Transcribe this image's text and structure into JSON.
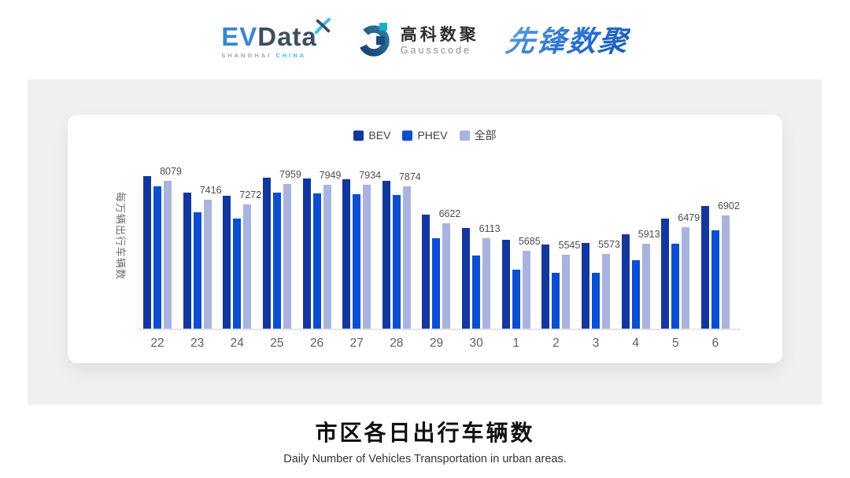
{
  "header": {
    "logos": {
      "evdata": {
        "part_ev": "EV",
        "part_data": "Data",
        "subtitle_left": "SHANGHAI",
        "subtitle_right": "CHINA"
      },
      "gausscode": {
        "cn": "高科数聚",
        "en": "Gausscode"
      },
      "pioneer": {
        "text": "先锋数聚"
      }
    }
  },
  "chart_data": {
    "type": "bar",
    "title": "市区各日出行车辆数",
    "subtitle": "Daily Number of Vehicles Transportation in urban areas.",
    "ylabel": "每万辆出行车辆数",
    "xlabel": "",
    "categories": [
      "22",
      "23",
      "24",
      "25",
      "26",
      "27",
      "28",
      "29",
      "30",
      "1",
      "2",
      "3",
      "4",
      "5",
      "6"
    ],
    "series": [
      {
        "key": "bev",
        "name": "BEV",
        "color": "#14379E",
        "values": [
          8230,
          7670,
          7555,
          8170,
          8150,
          8130,
          8060,
          6920,
          6450,
          6070,
          5910,
          5955,
          6245,
          6785,
          7220
        ],
        "labeled": false,
        "note": "values estimated from bar heights"
      },
      {
        "key": "phev",
        "name": "PHEV",
        "color": "#0B4FD0",
        "values": [
          7880,
          6990,
          6795,
          7660,
          7655,
          7625,
          7580,
          6110,
          5520,
          5050,
          4945,
          4930,
          5350,
          5925,
          6380
        ],
        "labeled": false,
        "note": "values estimated from bar heights"
      },
      {
        "key": "all",
        "name": "全部",
        "color": "#A9B3DF",
        "values": [
          8079,
          7416,
          7272,
          7959,
          7949,
          7934,
          7874,
          6622,
          6113,
          5685,
          5545,
          5573,
          5913,
          6479,
          6902
        ],
        "labeled": true,
        "note": "values printed on chart"
      }
    ],
    "ylim": [
      3000,
      8500
    ],
    "grid": false,
    "legend_position": "top",
    "value_label_series": "全部"
  },
  "colors": {
    "panel_bg": "#F0F0F1",
    "card_bg": "#FFFFFF",
    "axis_line": "#E4E4E9"
  }
}
